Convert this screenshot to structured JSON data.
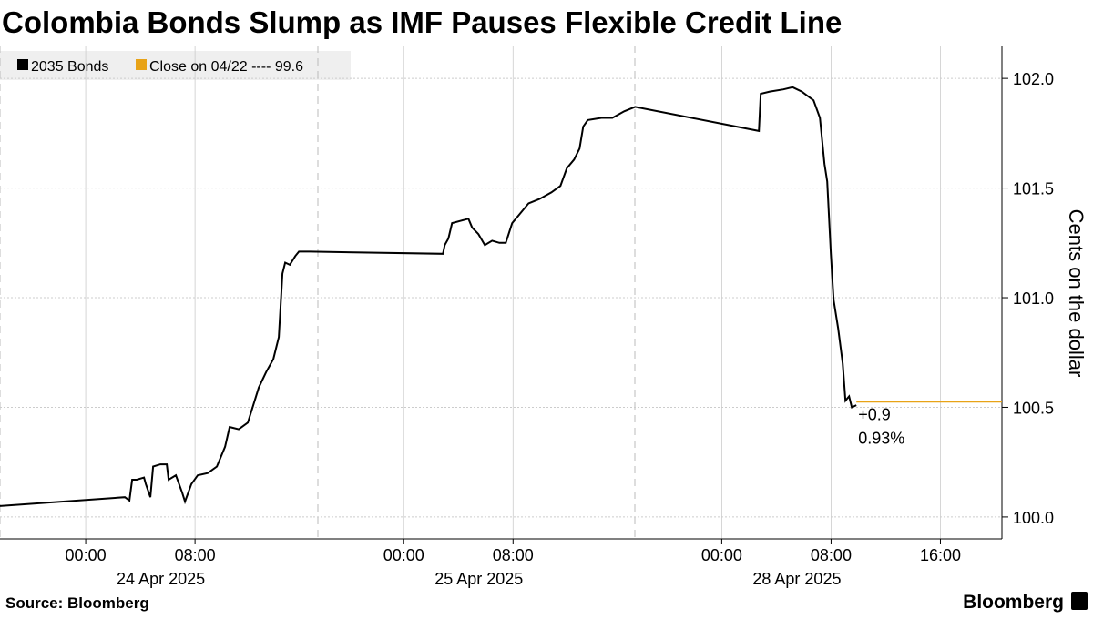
{
  "chart_data": {
    "type": "line",
    "title": "Colombia Bonds Slump as IMF Pauses Flexible Credit Line",
    "y_axis_label": "Cents on the dollar",
    "source": "Source: Bloomberg",
    "brand": "Bloomberg",
    "legend_extra": {
      "label": "Close on 04/22 ---- 99.6",
      "color": "#e8a317"
    },
    "last_line": {
      "value": 100.525,
      "color": "#e8a317"
    },
    "annotations": [
      "+0.9",
      "0.93%"
    ],
    "x": [
      "2025-04-23 17:00",
      "2025-04-24 02:52",
      "2025-04-24 03:12",
      "2025-04-24 03:24",
      "2025-04-24 03:44",
      "2025-04-24 04:16",
      "2025-04-24 04:24",
      "2025-04-24 04:44",
      "2025-04-24 04:56",
      "2025-04-24 05:28",
      "2025-04-24 05:56",
      "2025-04-24 06:04",
      "2025-04-24 06:36",
      "2025-04-24 07:04",
      "2025-04-24 07:16",
      "2025-04-24 07:44",
      "2025-04-24 08:12",
      "2025-04-24 08:56",
      "2025-04-24 09:36",
      "2025-04-24 10:12",
      "2025-04-24 10:32",
      "2025-04-24 11:12",
      "2025-04-24 11:52",
      "2025-04-24 12:16",
      "2025-04-24 12:40",
      "2025-04-24 13:12",
      "2025-04-24 13:44",
      "2025-04-24 14:08",
      "2025-04-24 14:24",
      "2025-04-24 14:36",
      "2025-04-24 14:56",
      "2025-04-24 15:20",
      "2025-04-24 15:36",
      "2025-04-24 16:24",
      "2025-04-25 02:52",
      "2025-04-25 03:00",
      "2025-04-25 03:16",
      "2025-04-25 03:32",
      "2025-04-25 04:08",
      "2025-04-25 04:44",
      "2025-04-25 05:00",
      "2025-04-25 05:28",
      "2025-04-25 05:56",
      "2025-04-25 06:28",
      "2025-04-25 07:00",
      "2025-04-25 07:28",
      "2025-04-25 07:56",
      "2025-04-25 08:28",
      "2025-04-25 09:08",
      "2025-04-25 09:56",
      "2025-04-25 10:48",
      "2025-04-25 11:28",
      "2025-04-25 11:56",
      "2025-04-25 12:28",
      "2025-04-25 12:52",
      "2025-04-25 13:08",
      "2025-04-25 13:28",
      "2025-04-25 14:28",
      "2025-04-25 15:16",
      "2025-04-25 16:08",
      "2025-04-25 16:56",
      "2025-04-28 02:43",
      "2025-04-28 02:51",
      "2025-04-28 03:31",
      "2025-04-28 04:31",
      "2025-04-28 05:11",
      "2025-04-28 05:51",
      "2025-04-28 06:43",
      "2025-04-28 07:11",
      "2025-04-28 07:31",
      "2025-04-28 07:43",
      "2025-04-28 07:59",
      "2025-04-28 08:11",
      "2025-04-28 08:31",
      "2025-04-28 08:51",
      "2025-04-28 09:03",
      "2025-04-28 09:19",
      "2025-04-28 09:31",
      "2025-04-28 09:51"
    ],
    "series": [
      {
        "name": "2035 Bonds",
        "color": "#000000",
        "values": [
          100.05,
          100.09,
          100.075,
          100.17,
          100.17,
          100.18,
          100.15,
          100.09,
          100.23,
          100.24,
          100.24,
          100.17,
          100.19,
          100.11,
          100.07,
          100.15,
          100.19,
          100.2,
          100.23,
          100.32,
          100.41,
          100.4,
          100.43,
          100.51,
          100.59,
          100.66,
          100.72,
          100.82,
          101.11,
          101.16,
          101.15,
          101.19,
          101.21,
          101.21,
          101.2,
          101.24,
          101.27,
          101.34,
          101.35,
          101.36,
          101.32,
          101.29,
          101.24,
          101.26,
          101.25,
          101.25,
          101.34,
          101.38,
          101.43,
          101.45,
          101.48,
          101.51,
          101.59,
          101.63,
          101.68,
          101.78,
          101.81,
          101.82,
          101.82,
          101.85,
          101.87,
          101.76,
          101.93,
          101.94,
          101.95,
          101.96,
          101.94,
          101.9,
          101.82,
          101.61,
          101.53,
          101.2,
          100.99,
          100.86,
          100.7,
          100.53,
          100.55,
          100.5,
          100.51
        ]
      }
    ],
    "xlim": [
      "2025-04-23 17:00",
      "2025-04-28 20:30"
    ],
    "xticks": [
      {
        "value": "2025-04-24 00:00",
        "label": "00:00"
      },
      {
        "value": "2025-04-24 08:00",
        "label": "08:00"
      },
      {
        "value": "2025-04-25 00:00",
        "label": "00:00"
      },
      {
        "value": "2025-04-25 08:00",
        "label": "08:00"
      },
      {
        "value": "2025-04-28 00:00",
        "label": "00:00"
      },
      {
        "value": "2025-04-28 08:00",
        "label": "08:00"
      },
      {
        "value": "2025-04-28 16:00",
        "label": "16:00"
      }
    ],
    "xdate_labels": [
      {
        "value": "2025-04-24 05:30",
        "label": "24 Apr 2025"
      },
      {
        "value": "2025-04-25 05:30",
        "label": "25 Apr 2025"
      },
      {
        "value": "2025-04-28 05:30",
        "label": "28 Apr 2025"
      }
    ],
    "ylim": [
      99.9,
      102.15
    ],
    "yticks": [
      {
        "value": 100,
        "label": "100.0"
      },
      100.5,
      {
        "value": 101,
        "label": "101.0"
      },
      101.5,
      {
        "value": 102,
        "label": "102.0"
      }
    ],
    "grid": true
  }
}
